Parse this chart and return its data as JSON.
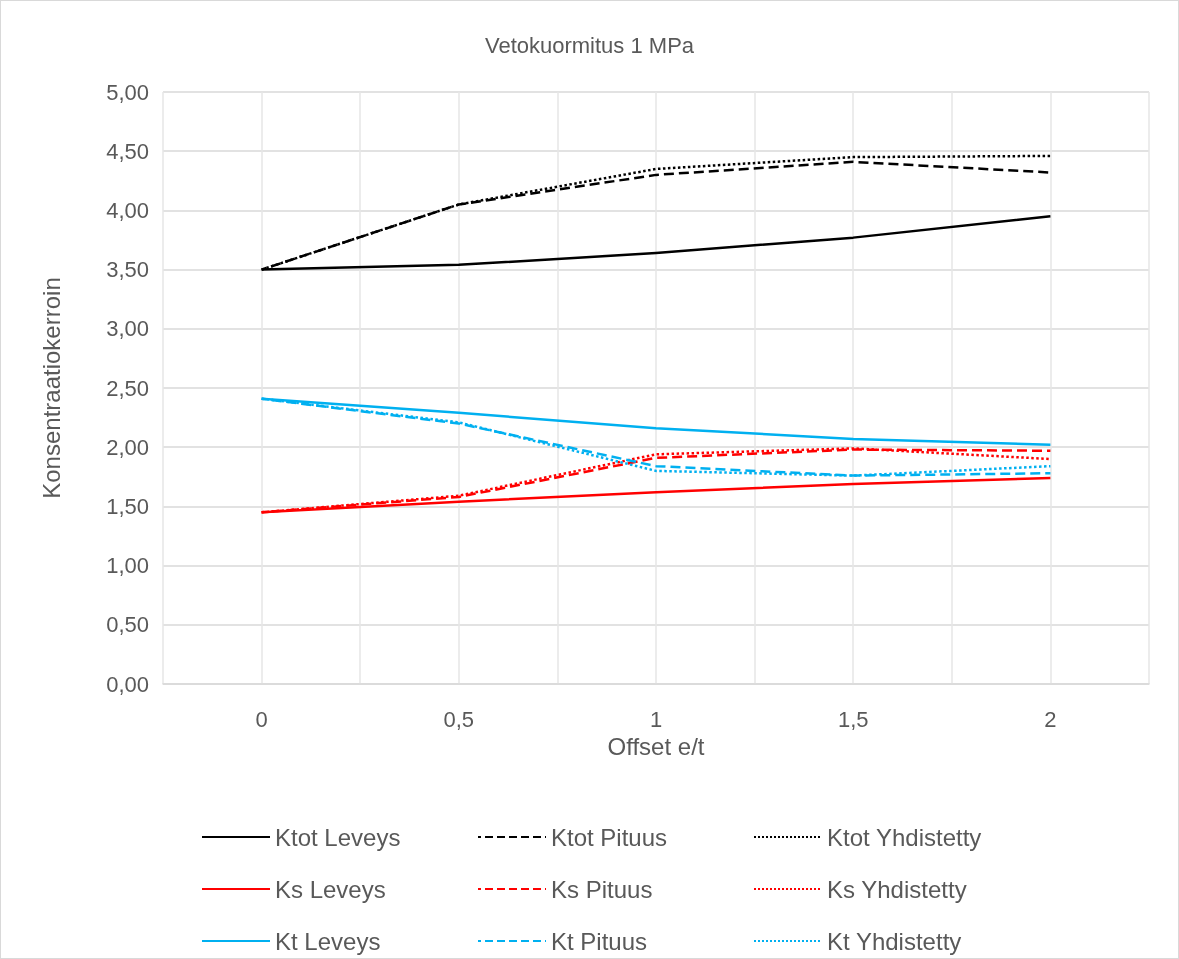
{
  "chart_data": {
    "type": "line",
    "title": "Vetokuormitus 1 MPa",
    "xlabel": "Offset e/t",
    "ylabel": "Konsentraatiokerroin",
    "x": [
      0,
      0.5,
      1,
      1.5,
      2
    ],
    "xlim": [
      -0.25,
      2.25
    ],
    "xticks": [
      {
        "value": -0.25,
        "label": null
      },
      {
        "value": 0,
        "label": "0"
      },
      {
        "value": 0.25,
        "label": null
      },
      {
        "value": 0.5,
        "label": "0,5"
      },
      {
        "value": 0.75,
        "label": null
      },
      {
        "value": 1,
        "label": "1"
      },
      {
        "value": 1.25,
        "label": null
      },
      {
        "value": 1.5,
        "label": "1,5"
      },
      {
        "value": 1.75,
        "label": null
      },
      {
        "value": 2,
        "label": "2"
      },
      {
        "value": 2.25,
        "label": null
      }
    ],
    "ylim": [
      0,
      5
    ],
    "yticks": [
      {
        "value": 0,
        "label": "0,00"
      },
      {
        "value": 0.5,
        "label": "0,50"
      },
      {
        "value": 1,
        "label": "1,00"
      },
      {
        "value": 1.5,
        "label": "1,50"
      },
      {
        "value": 2,
        "label": "2,00"
      },
      {
        "value": 2.5,
        "label": "2,50"
      },
      {
        "value": 3,
        "label": "3,00"
      },
      {
        "value": 3.5,
        "label": "3,50"
      },
      {
        "value": 4,
        "label": "4,00"
      },
      {
        "value": 4.5,
        "label": "4,50"
      },
      {
        "value": 5,
        "label": "5,00"
      }
    ],
    "grid": true,
    "legend": "bottom",
    "marker": "none",
    "series": [
      {
        "name": "Ktot Leveys",
        "color": "#000000",
        "line_style": "solid",
        "values": [
          3.5,
          3.54,
          3.64,
          3.77,
          3.95
        ]
      },
      {
        "name": "Ktot Pituus",
        "color": "#000000",
        "line_style": "dashed",
        "values": [
          3.5,
          4.05,
          4.3,
          4.41,
          4.32
        ]
      },
      {
        "name": "Ktot Yhdistetty",
        "color": "#000000",
        "line_style": "dotted",
        "values": [
          3.5,
          4.05,
          4.35,
          4.45,
          4.46
        ]
      },
      {
        "name": "Ks Leveys",
        "color": "#ff0000",
        "line_style": "solid",
        "values": [
          1.45,
          1.54,
          1.62,
          1.69,
          1.74
        ]
      },
      {
        "name": "Ks Pituus",
        "color": "#ff0000",
        "line_style": "dashed",
        "values": [
          1.45,
          1.58,
          1.91,
          1.98,
          1.97
        ]
      },
      {
        "name": "Ks Yhdistetty",
        "color": "#ff0000",
        "line_style": "dotted",
        "values": [
          1.45,
          1.59,
          1.94,
          1.99,
          1.9
        ]
      },
      {
        "name": "Kt Leveys",
        "color": "#00b0f0",
        "line_style": "solid",
        "values": [
          2.41,
          2.29,
          2.16,
          2.07,
          2.02
        ]
      },
      {
        "name": "Kt Pituus",
        "color": "#00b0f0",
        "line_style": "dashed",
        "values": [
          2.41,
          2.2,
          1.84,
          1.76,
          1.78
        ]
      },
      {
        "name": "Kt Yhdistetty",
        "color": "#00b0f0",
        "line_style": "dotted",
        "values": [
          2.41,
          2.21,
          1.8,
          1.76,
          1.84
        ]
      }
    ]
  }
}
